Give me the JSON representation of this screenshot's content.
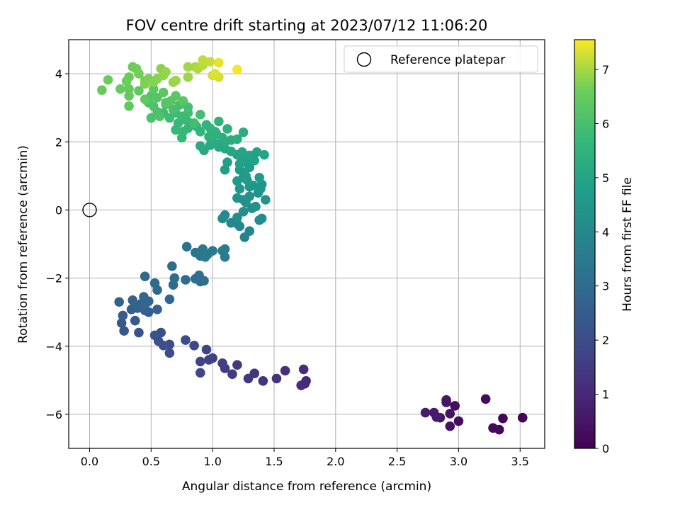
{
  "chart_data": {
    "type": "scatter",
    "title": "FOV centre drift starting at 2023/07/12 11:06:20",
    "xlabel": "Angular distance from reference (arcmin)",
    "ylabel": "Rotation from reference (arcmin)",
    "xlim": [
      -0.17,
      3.7
    ],
    "ylim": [
      -7,
      5
    ],
    "xticks": [
      "0.0",
      "0.5",
      "1.0",
      "1.5",
      "2.0",
      "2.5",
      "3.0",
      "3.5"
    ],
    "xtick_values": [
      0,
      0.5,
      1.0,
      1.5,
      2.0,
      2.5,
      3.0,
      3.5
    ],
    "yticks": [
      "−6",
      "−4",
      "−2",
      "0",
      "2",
      "4"
    ],
    "ytick_values": [
      -6,
      -4,
      -2,
      0,
      2,
      4
    ],
    "grid": true,
    "legend": {
      "placement": "top-right",
      "label": "Reference platepar"
    },
    "reference_point": {
      "x": 0.0,
      "y": 0.0
    },
    "colorbar": {
      "label": "Hours from first FF file",
      "range": [
        0,
        7.55
      ],
      "ticks": [
        "0",
        "1",
        "2",
        "3",
        "4",
        "5",
        "6",
        "7"
      ],
      "tick_values": [
        0,
        1,
        2,
        3,
        4,
        5,
        6,
        7
      ],
      "colormap": "viridis"
    },
    "points": [
      [
        3.52,
        -6.1,
        0.05
      ],
      [
        3.36,
        -6.12,
        0.1
      ],
      [
        3.33,
        -6.45,
        0.15
      ],
      [
        3.28,
        -6.4,
        0.2
      ],
      [
        3.22,
        -5.55,
        0.25
      ],
      [
        3.0,
        -6.2,
        0.3
      ],
      [
        2.97,
        -5.75,
        0.35
      ],
      [
        2.93,
        -6.35,
        0.4
      ],
      [
        2.93,
        -5.98,
        0.45
      ],
      [
        2.9,
        -5.58,
        0.5
      ],
      [
        2.9,
        -5.65,
        0.52
      ],
      [
        2.85,
        -6.1,
        0.55
      ],
      [
        2.82,
        -6.08,
        0.6
      ],
      [
        2.8,
        -5.95,
        0.65
      ],
      [
        2.73,
        -5.95,
        0.7
      ],
      [
        1.76,
        -5.02,
        1.0
      ],
      [
        1.75,
        -5.1,
        1.05
      ],
      [
        1.74,
        -4.68,
        1.1
      ],
      [
        1.72,
        -5.15,
        1.15
      ],
      [
        1.59,
        -4.72,
        1.2
      ],
      [
        1.52,
        -4.95,
        1.25
      ],
      [
        1.41,
        -5.02,
        1.3
      ],
      [
        1.34,
        -4.8,
        1.35
      ],
      [
        1.29,
        -4.95,
        1.4
      ],
      [
        1.2,
        -4.55,
        1.45
      ],
      [
        1.16,
        -4.82,
        1.5
      ],
      [
        1.1,
        -4.65,
        1.55
      ],
      [
        1.08,
        -4.5,
        1.6
      ],
      [
        1.0,
        -4.35,
        1.65
      ],
      [
        0.97,
        -4.4,
        1.7
      ],
      [
        0.95,
        -4.1,
        1.75
      ],
      [
        0.9,
        -4.45,
        1.8
      ],
      [
        0.9,
        -4.78,
        1.85
      ],
      [
        0.85,
        -3.98,
        1.9
      ],
      [
        0.78,
        -3.82,
        1.95
      ],
      [
        0.65,
        -4.2,
        2.0
      ],
      [
        0.65,
        -3.95,
        2.05
      ],
      [
        0.6,
        -3.98,
        2.1
      ],
      [
        0.58,
        -3.6,
        2.12
      ],
      [
        0.56,
        -3.85,
        2.15
      ],
      [
        0.53,
        -3.68,
        2.2
      ],
      [
        0.4,
        -3.6,
        2.25
      ],
      [
        0.28,
        -3.55,
        2.3
      ],
      [
        0.26,
        -3.32,
        2.35
      ],
      [
        0.37,
        -3.25,
        2.4
      ],
      [
        0.27,
        -3.1,
        2.45
      ],
      [
        0.48,
        -3.0,
        2.5
      ],
      [
        0.34,
        -2.92,
        2.55
      ],
      [
        0.39,
        -2.88,
        2.6
      ],
      [
        0.45,
        -2.95,
        2.62
      ],
      [
        0.55,
        -2.92,
        2.65
      ],
      [
        0.24,
        -2.7,
        2.7
      ],
      [
        0.35,
        -2.65,
        2.72
      ],
      [
        0.37,
        -2.8,
        2.75
      ],
      [
        0.42,
        -2.75,
        2.78
      ],
      [
        0.45,
        -2.78,
        2.8
      ],
      [
        0.48,
        -2.68,
        2.82
      ],
      [
        0.44,
        -2.55,
        2.85
      ],
      [
        0.65,
        -2.62,
        2.88
      ],
      [
        0.55,
        -2.35,
        2.9
      ],
      [
        0.53,
        -2.15,
        2.92
      ],
      [
        0.45,
        -1.95,
        2.95
      ],
      [
        0.68,
        -2.2,
        2.98
      ],
      [
        0.69,
        -2.0,
        3.0
      ],
      [
        0.78,
        -2.05,
        3.02
      ],
      [
        0.67,
        -1.65,
        3.05
      ],
      [
        0.86,
        -2.02,
        3.08
      ],
      [
        0.9,
        -2.1,
        3.1
      ],
      [
        0.93,
        -2.08,
        3.12
      ],
      [
        0.89,
        -1.92,
        3.15
      ],
      [
        0.79,
        -1.08,
        3.2
      ],
      [
        0.86,
        -1.25,
        3.25
      ],
      [
        0.9,
        -1.35,
        3.3
      ],
      [
        0.92,
        -1.25,
        3.35
      ],
      [
        0.94,
        -1.38,
        3.4
      ],
      [
        0.92,
        -1.15,
        3.42
      ],
      [
        0.96,
        -1.3,
        3.45
      ],
      [
        1.0,
        -1.2,
        3.48
      ],
      [
        1.08,
        -1.2,
        3.5
      ],
      [
        1.1,
        -1.38,
        3.52
      ],
      [
        1.1,
        -1.15,
        3.55
      ],
      [
        1.26,
        -0.8,
        3.8
      ],
      [
        1.3,
        -0.62,
        3.85
      ],
      [
        1.22,
        -0.48,
        3.9
      ],
      [
        1.2,
        -0.4,
        3.95
      ],
      [
        1.15,
        -0.38,
        4.0
      ],
      [
        1.1,
        -0.15,
        4.05
      ],
      [
        1.08,
        -0.25,
        4.1
      ],
      [
        1.2,
        -0.22,
        4.12
      ],
      [
        1.38,
        -0.3,
        4.15
      ],
      [
        1.4,
        -0.25,
        4.18
      ],
      [
        1.25,
        -0.05,
        4.2
      ],
      [
        1.32,
        0.05,
        4.22
      ],
      [
        1.27,
        0.22,
        4.25
      ],
      [
        1.2,
        0.35,
        4.28
      ],
      [
        1.25,
        0.3,
        4.3
      ],
      [
        1.35,
        0.1,
        4.32
      ],
      [
        1.3,
        0.4,
        4.35
      ],
      [
        1.37,
        0.5,
        4.38
      ],
      [
        1.43,
        0.3,
        4.4
      ],
      [
        1.39,
        0.62,
        4.42
      ],
      [
        1.4,
        0.75,
        4.45
      ],
      [
        1.22,
        0.62,
        4.48
      ],
      [
        1.3,
        0.68,
        4.5
      ],
      [
        1.33,
        0.72,
        4.52
      ],
      [
        1.28,
        0.88,
        4.55
      ],
      [
        1.38,
        0.95,
        4.58
      ],
      [
        1.25,
        0.95,
        4.6
      ],
      [
        1.2,
        0.85,
        4.62
      ],
      [
        1.27,
        1.0,
        4.65
      ],
      [
        1.25,
        1.1,
        4.68
      ],
      [
        1.22,
        1.18,
        4.7
      ],
      [
        1.3,
        1.25,
        4.72
      ],
      [
        1.28,
        1.38,
        4.75
      ],
      [
        1.22,
        1.35,
        4.78
      ],
      [
        1.1,
        1.18,
        4.8
      ],
      [
        1.12,
        1.4,
        4.82
      ],
      [
        1.24,
        1.48,
        4.85
      ],
      [
        1.34,
        1.45,
        4.88
      ],
      [
        1.25,
        1.55,
        4.9
      ],
      [
        1.2,
        1.62,
        4.92
      ],
      [
        1.3,
        1.6,
        4.95
      ],
      [
        1.36,
        1.7,
        4.98
      ],
      [
        1.42,
        1.62,
        5.0
      ],
      [
        1.24,
        1.7,
        5.02
      ],
      [
        1.15,
        1.72,
        5.05
      ],
      [
        1.1,
        1.8,
        5.08
      ],
      [
        1.05,
        1.85,
        5.1
      ],
      [
        0.98,
        1.9,
        5.12
      ],
      [
        0.93,
        1.75,
        5.15
      ],
      [
        0.9,
        1.88,
        5.18
      ],
      [
        1.02,
        1.95,
        5.2
      ],
      [
        1.1,
        2.0,
        5.22
      ],
      [
        1.15,
        2.05,
        5.25
      ],
      [
        1.08,
        2.12,
        5.28
      ],
      [
        1.0,
        2.08,
        5.3
      ],
      [
        1.2,
        2.08,
        5.32
      ],
      [
        1.25,
        2.28,
        5.35
      ],
      [
        1.12,
        2.38,
        5.38
      ],
      [
        1.03,
        2.25,
        5.4
      ],
      [
        0.97,
        2.15,
        5.42
      ],
      [
        1.02,
        2.3,
        5.45
      ],
      [
        1.05,
        2.6,
        5.48
      ],
      [
        0.98,
        2.4,
        5.5
      ],
      [
        0.95,
        2.5,
        5.52
      ],
      [
        0.9,
        2.3,
        5.55
      ],
      [
        0.87,
        2.45,
        5.58
      ],
      [
        0.82,
        2.55,
        5.6
      ],
      [
        0.8,
        2.4,
        5.62
      ],
      [
        0.76,
        2.3,
        5.65
      ],
      [
        0.75,
        2.12,
        5.68
      ],
      [
        0.72,
        2.55,
        5.7
      ],
      [
        0.7,
        2.35,
        5.72
      ],
      [
        0.78,
        2.65,
        5.75
      ],
      [
        0.75,
        2.75,
        5.78
      ],
      [
        0.7,
        2.85,
        5.8
      ],
      [
        0.65,
        2.7,
        5.82
      ],
      [
        0.6,
        2.85,
        5.85
      ],
      [
        0.8,
        2.85,
        5.88
      ],
      [
        0.85,
        2.55,
        5.9
      ],
      [
        0.9,
        2.8,
        5.92
      ],
      [
        0.8,
        3.02,
        5.95
      ],
      [
        0.73,
        3.08,
        5.98
      ],
      [
        0.68,
        2.95,
        6.0
      ],
      [
        0.62,
        3.1,
        6.02
      ],
      [
        0.55,
        2.88,
        6.05
      ],
      [
        0.5,
        2.7,
        6.08
      ],
      [
        0.57,
        2.75,
        6.1
      ],
      [
        0.52,
        3.05,
        6.12
      ],
      [
        0.48,
        3.15,
        6.15
      ],
      [
        0.5,
        3.35,
        6.18
      ],
      [
        0.55,
        3.3,
        6.2
      ],
      [
        0.62,
        3.15,
        6.22
      ],
      [
        0.66,
        3.2,
        6.25
      ],
      [
        0.76,
        3.2,
        6.28
      ],
      [
        0.7,
        3.35,
        6.3
      ],
      [
        0.6,
        3.45,
        6.32
      ],
      [
        0.52,
        3.55,
        6.35
      ],
      [
        0.45,
        3.25,
        6.38
      ],
      [
        0.4,
        3.5,
        6.4
      ],
      [
        0.32,
        3.05,
        6.42
      ],
      [
        0.32,
        3.35,
        6.45
      ],
      [
        0.32,
        3.55,
        6.48
      ],
      [
        0.25,
        3.55,
        6.5
      ],
      [
        0.1,
        3.52,
        6.52
      ],
      [
        0.15,
        3.82,
        6.55
      ],
      [
        0.3,
        3.78,
        6.58
      ],
      [
        0.32,
        3.9,
        6.6
      ],
      [
        0.35,
        4.2,
        6.62
      ],
      [
        0.38,
        4.15,
        6.65
      ],
      [
        0.4,
        4.0,
        6.68
      ],
      [
        0.45,
        3.8,
        6.7
      ],
      [
        0.48,
        3.85,
        6.72
      ],
      [
        0.45,
        3.7,
        6.75
      ],
      [
        0.52,
        3.75,
        6.78
      ],
      [
        0.55,
        3.85,
        6.8
      ],
      [
        0.58,
        4.15,
        6.82
      ],
      [
        0.6,
        3.95,
        6.85
      ],
      [
        0.62,
        4.05,
        6.88
      ],
      [
        0.68,
        3.75,
        6.9
      ],
      [
        0.7,
        3.8,
        6.92
      ],
      [
        0.8,
        3.9,
        6.95
      ],
      [
        0.8,
        4.2,
        6.98
      ],
      [
        0.86,
        4.2,
        7.0
      ],
      [
        0.88,
        4.15,
        7.05
      ],
      [
        0.92,
        4.25,
        7.1
      ],
      [
        0.92,
        4.4,
        7.15
      ],
      [
        0.98,
        4.35,
        7.2
      ],
      [
        1.0,
        3.95,
        7.25
      ],
      [
        1.05,
        3.9,
        7.3
      ],
      [
        1.02,
        4.0,
        7.35
      ],
      [
        1.05,
        4.32,
        7.4
      ],
      [
        1.2,
        4.12,
        7.5
      ]
    ]
  }
}
